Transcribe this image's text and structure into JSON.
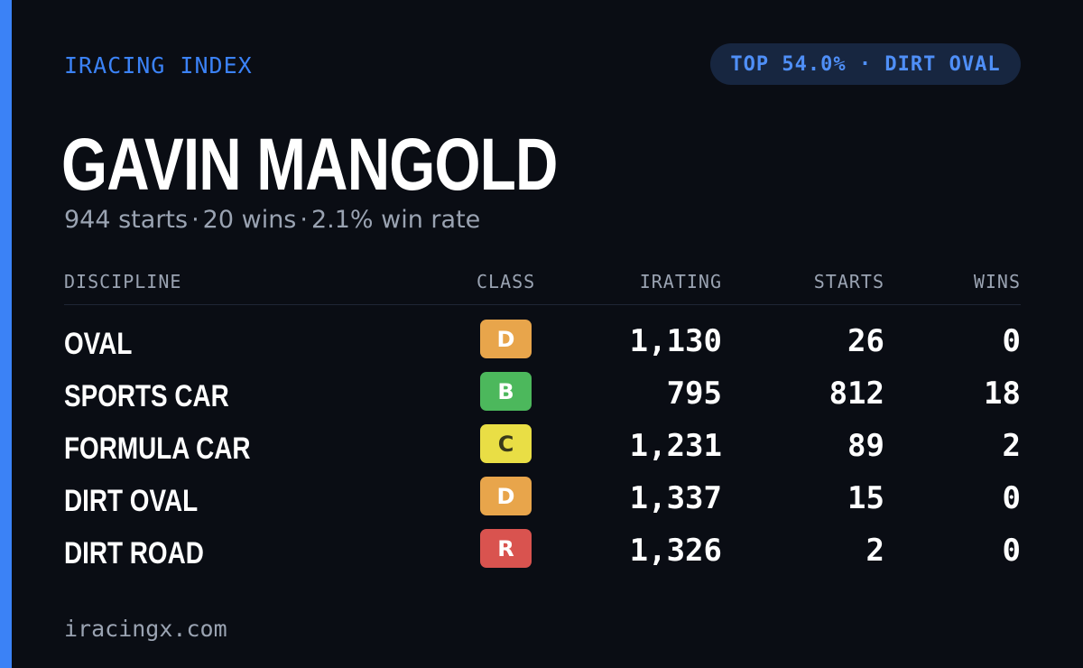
{
  "brand": "IRACING INDEX",
  "pill": "TOP 54.0% · DIRT OVAL",
  "driver": {
    "name": "GAVIN MANGOLD",
    "starts_text": "944 starts",
    "wins_text": "20 wins",
    "winrate_text": "2.1% win rate",
    "separator": "·"
  },
  "table": {
    "headers": {
      "discipline": "DISCIPLINE",
      "class": "CLASS",
      "irating": "IRATING",
      "starts": "STARTS",
      "wins": "WINS"
    },
    "rows": [
      {
        "discipline": "OVAL",
        "class": "D",
        "class_color": "#e8a54b",
        "class_text_color": "#ffffff",
        "irating": "1,130",
        "starts": "26",
        "wins": "0"
      },
      {
        "discipline": "SPORTS CAR",
        "class": "B",
        "class_color": "#4cb85c",
        "class_text_color": "#ffffff",
        "irating": "795",
        "starts": "812",
        "wins": "18"
      },
      {
        "discipline": "FORMULA CAR",
        "class": "C",
        "class_color": "#e9de45",
        "class_text_color": "#3a3a1a",
        "irating": "1,231",
        "starts": "89",
        "wins": "2"
      },
      {
        "discipline": "DIRT OVAL",
        "class": "D",
        "class_color": "#e8a54b",
        "class_text_color": "#ffffff",
        "irating": "1,337",
        "starts": "15",
        "wins": "0"
      },
      {
        "discipline": "DIRT ROAD",
        "class": "R",
        "class_color": "#d9534f",
        "class_text_color": "#ffffff",
        "irating": "1,326",
        "starts": "2",
        "wins": "0"
      }
    ]
  },
  "footer": "iracingx.com",
  "colors": {
    "background": "#0a0d14",
    "accent": "#3b82f6",
    "muted": "#9aa3b2"
  }
}
